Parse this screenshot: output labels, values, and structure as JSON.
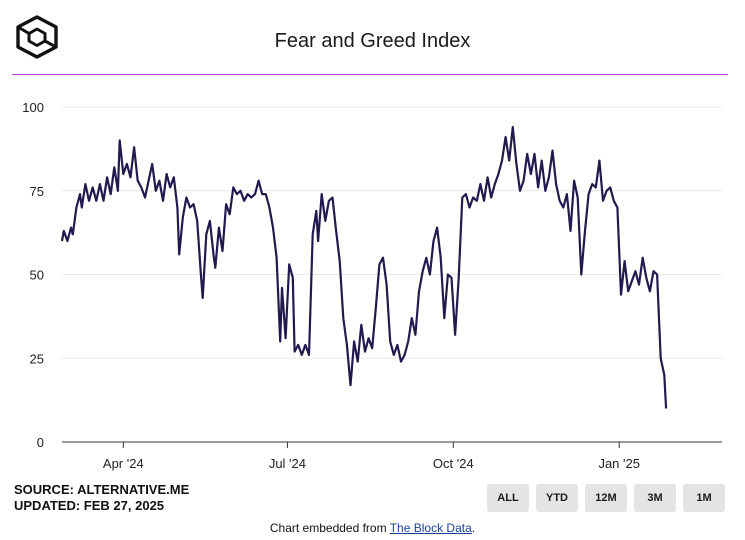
{
  "header": {
    "logo_icon": "the-block-cube-icon",
    "title": "Fear and Greed Index",
    "accent_color": "#c33fd9"
  },
  "chart_data": {
    "type": "line",
    "title": "Fear and Greed Index",
    "xlabel": "",
    "ylabel": "",
    "ylim": [
      0,
      100
    ],
    "y_ticks": [
      0,
      25,
      50,
      75,
      100
    ],
    "x_ticks": [
      {
        "label": "Apr '24",
        "date": "2024-04-01"
      },
      {
        "label": "Jul '24",
        "date": "2024-07-01"
      },
      {
        "label": "Oct '24",
        "date": "2024-10-01"
      },
      {
        "label": "Jan '25",
        "date": "2025-01-01"
      }
    ],
    "x_range": [
      "2024-02-27",
      "2025-02-27"
    ],
    "grid": true,
    "line_color": "#221a4e",
    "series": [
      {
        "name": "",
        "points": [
          [
            "2024-02-27",
            60
          ],
          [
            "2024-02-28",
            63
          ],
          [
            "2024-03-01",
            60
          ],
          [
            "2024-03-03",
            64
          ],
          [
            "2024-03-04",
            62
          ],
          [
            "2024-03-06",
            70
          ],
          [
            "2024-03-08",
            74
          ],
          [
            "2024-03-09",
            70
          ],
          [
            "2024-03-11",
            77
          ],
          [
            "2024-03-13",
            72
          ],
          [
            "2024-03-15",
            76
          ],
          [
            "2024-03-17",
            72
          ],
          [
            "2024-03-19",
            77
          ],
          [
            "2024-03-21",
            72
          ],
          [
            "2024-03-23",
            79
          ],
          [
            "2024-03-25",
            74
          ],
          [
            "2024-03-27",
            82
          ],
          [
            "2024-03-29",
            75
          ],
          [
            "2024-03-30",
            90
          ],
          [
            "2024-04-01",
            80
          ],
          [
            "2024-04-03",
            83
          ],
          [
            "2024-04-05",
            79
          ],
          [
            "2024-04-07",
            88
          ],
          [
            "2024-04-09",
            78
          ],
          [
            "2024-04-11",
            76
          ],
          [
            "2024-04-13",
            73
          ],
          [
            "2024-04-15",
            78
          ],
          [
            "2024-04-17",
            83
          ],
          [
            "2024-04-19",
            75
          ],
          [
            "2024-04-21",
            78
          ],
          [
            "2024-04-23",
            72
          ],
          [
            "2024-04-25",
            80
          ],
          [
            "2024-04-27",
            76
          ],
          [
            "2024-04-29",
            79
          ],
          [
            "2024-05-01",
            70
          ],
          [
            "2024-05-02",
            56
          ],
          [
            "2024-05-04",
            67
          ],
          [
            "2024-05-06",
            73
          ],
          [
            "2024-05-08",
            70
          ],
          [
            "2024-05-10",
            71
          ],
          [
            "2024-05-12",
            66
          ],
          [
            "2024-05-14",
            50
          ],
          [
            "2024-05-15",
            43
          ],
          [
            "2024-05-17",
            62
          ],
          [
            "2024-05-19",
            66
          ],
          [
            "2024-05-21",
            56
          ],
          [
            "2024-05-22",
            52
          ],
          [
            "2024-05-24",
            64
          ],
          [
            "2024-05-26",
            57
          ],
          [
            "2024-05-28",
            71
          ],
          [
            "2024-05-30",
            68
          ],
          [
            "2024-06-01",
            76
          ],
          [
            "2024-06-03",
            74
          ],
          [
            "2024-06-05",
            75
          ],
          [
            "2024-06-07",
            72
          ],
          [
            "2024-06-09",
            74
          ],
          [
            "2024-06-11",
            73
          ],
          [
            "2024-06-13",
            74
          ],
          [
            "2024-06-15",
            78
          ],
          [
            "2024-06-17",
            74
          ],
          [
            "2024-06-19",
            74
          ],
          [
            "2024-06-21",
            70
          ],
          [
            "2024-06-23",
            64
          ],
          [
            "2024-06-25",
            55
          ],
          [
            "2024-06-27",
            30
          ],
          [
            "2024-06-28",
            46
          ],
          [
            "2024-06-30",
            31
          ],
          [
            "2024-07-02",
            53
          ],
          [
            "2024-07-04",
            49
          ],
          [
            "2024-07-05",
            27
          ],
          [
            "2024-07-07",
            29
          ],
          [
            "2024-07-09",
            26
          ],
          [
            "2024-07-11",
            29
          ],
          [
            "2024-07-13",
            26
          ],
          [
            "2024-07-15",
            62
          ],
          [
            "2024-07-17",
            69
          ],
          [
            "2024-07-18",
            60
          ],
          [
            "2024-07-20",
            74
          ],
          [
            "2024-07-22",
            66
          ],
          [
            "2024-07-24",
            72
          ],
          [
            "2024-07-26",
            73
          ],
          [
            "2024-07-28",
            63
          ],
          [
            "2024-07-30",
            54
          ],
          [
            "2024-08-01",
            37
          ],
          [
            "2024-08-03",
            29
          ],
          [
            "2024-08-05",
            17
          ],
          [
            "2024-08-07",
            30
          ],
          [
            "2024-08-09",
            24
          ],
          [
            "2024-08-11",
            35
          ],
          [
            "2024-08-13",
            27
          ],
          [
            "2024-08-15",
            31
          ],
          [
            "2024-08-17",
            28
          ],
          [
            "2024-08-19",
            40
          ],
          [
            "2024-08-21",
            53
          ],
          [
            "2024-08-23",
            55
          ],
          [
            "2024-08-25",
            47
          ],
          [
            "2024-08-27",
            30
          ],
          [
            "2024-08-29",
            26
          ],
          [
            "2024-08-31",
            29
          ],
          [
            "2024-09-02",
            24
          ],
          [
            "2024-09-04",
            26
          ],
          [
            "2024-09-06",
            30
          ],
          [
            "2024-09-08",
            37
          ],
          [
            "2024-09-10",
            32
          ],
          [
            "2024-09-12",
            45
          ],
          [
            "2024-09-14",
            51
          ],
          [
            "2024-09-16",
            55
          ],
          [
            "2024-09-18",
            50
          ],
          [
            "2024-09-20",
            60
          ],
          [
            "2024-09-22",
            64
          ],
          [
            "2024-09-24",
            55
          ],
          [
            "2024-09-26",
            37
          ],
          [
            "2024-09-28",
            50
          ],
          [
            "2024-09-30",
            49
          ],
          [
            "2024-10-02",
            32
          ],
          [
            "2024-10-04",
            49
          ],
          [
            "2024-10-06",
            73
          ],
          [
            "2024-10-08",
            74
          ],
          [
            "2024-10-10",
            70
          ],
          [
            "2024-10-12",
            73
          ],
          [
            "2024-10-14",
            72
          ],
          [
            "2024-10-16",
            77
          ],
          [
            "2024-10-18",
            72
          ],
          [
            "2024-10-20",
            79
          ],
          [
            "2024-10-22",
            73
          ],
          [
            "2024-10-24",
            77
          ],
          [
            "2024-10-26",
            80
          ],
          [
            "2024-10-28",
            84
          ],
          [
            "2024-10-30",
            91
          ],
          [
            "2024-11-01",
            84
          ],
          [
            "2024-11-03",
            94
          ],
          [
            "2024-11-05",
            83
          ],
          [
            "2024-11-07",
            75
          ],
          [
            "2024-11-09",
            78
          ],
          [
            "2024-11-11",
            86
          ],
          [
            "2024-11-13",
            80
          ],
          [
            "2024-11-15",
            86
          ],
          [
            "2024-11-17",
            76
          ],
          [
            "2024-11-19",
            84
          ],
          [
            "2024-11-21",
            75
          ],
          [
            "2024-11-23",
            79
          ],
          [
            "2024-11-25",
            87
          ],
          [
            "2024-11-27",
            77
          ],
          [
            "2024-11-29",
            72
          ],
          [
            "2024-12-01",
            70
          ],
          [
            "2024-12-03",
            74
          ],
          [
            "2024-12-05",
            63
          ],
          [
            "2024-12-07",
            78
          ],
          [
            "2024-12-09",
            73
          ],
          [
            "2024-12-11",
            50
          ],
          [
            "2024-12-13",
            63
          ],
          [
            "2024-12-15",
            74
          ],
          [
            "2024-12-17",
            77
          ],
          [
            "2024-12-19",
            76
          ],
          [
            "2024-12-21",
            84
          ],
          [
            "2024-12-23",
            72
          ],
          [
            "2024-12-25",
            75
          ],
          [
            "2024-12-27",
            76
          ],
          [
            "2024-12-29",
            72
          ],
          [
            "2024-12-31",
            70
          ],
          [
            "2025-01-02",
            44
          ],
          [
            "2025-01-04",
            54
          ],
          [
            "2025-01-06",
            45
          ],
          [
            "2025-01-08",
            48
          ],
          [
            "2025-01-10",
            51
          ],
          [
            "2025-01-12",
            47
          ],
          [
            "2025-01-14",
            55
          ],
          [
            "2025-01-16",
            49
          ],
          [
            "2025-01-18",
            45
          ],
          [
            "2025-01-20",
            51
          ],
          [
            "2025-01-22",
            50
          ],
          [
            "2025-01-24",
            25
          ],
          [
            "2025-01-26",
            20
          ],
          [
            "2025-01-27",
            10
          ]
        ]
      }
    ]
  },
  "footer": {
    "source": "SOURCE: ALTERNATIVE.ME",
    "updated": "UPDATED: FEB 27, 2025",
    "embed_prefix": "Chart embedded from ",
    "embed_link": "The Block Data",
    "embed_suffix": "."
  },
  "range_buttons": [
    "ALL",
    "YTD",
    "12M",
    "3M",
    "1M"
  ]
}
